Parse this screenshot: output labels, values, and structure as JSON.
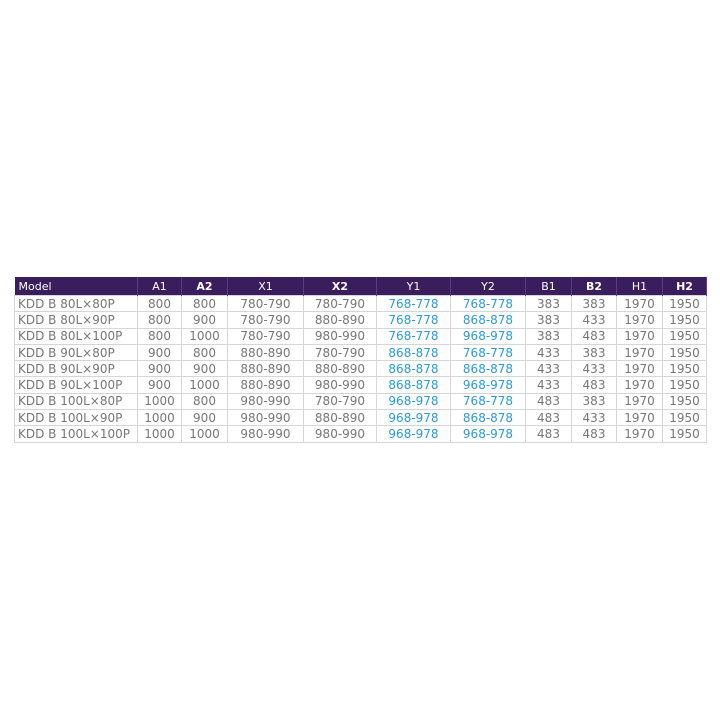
{
  "table": {
    "header": [
      "Model",
      "A1",
      "A2",
      "X1",
      "X2",
      "Y1",
      "Y2",
      "B1",
      "B2",
      "H1",
      "H2"
    ],
    "rows": [
      [
        "KDD B 80L×80P",
        "800",
        "800",
        "780-790",
        "780-790",
        "768-778",
        "768-778",
        "383",
        "383",
        "1970",
        "1950"
      ],
      [
        "KDD B 80L×90P",
        "800",
        "900",
        "780-790",
        "880-890",
        "768-778",
        "868-878",
        "383",
        "433",
        "1970",
        "1950"
      ],
      [
        "KDD B 80L×100P",
        "800",
        "1000",
        "780-790",
        "980-990",
        "768-778",
        "968-978",
        "383",
        "483",
        "1970",
        "1950"
      ],
      [
        "KDD B 90L×80P",
        "900",
        "800",
        "880-890",
        "780-790",
        "868-878",
        "768-778",
        "433",
        "383",
        "1970",
        "1950"
      ],
      [
        "KDD B 90L×90P",
        "900",
        "900",
        "880-890",
        "880-890",
        "868-878",
        "868-878",
        "433",
        "433",
        "1970",
        "1950"
      ],
      [
        "KDD B 90L×100P",
        "900",
        "1000",
        "880-890",
        "980-990",
        "868-878",
        "968-978",
        "433",
        "483",
        "1970",
        "1950"
      ],
      [
        "KDD B 100L×80P",
        "1000",
        "800",
        "980-990",
        "780-790",
        "968-978",
        "768-778",
        "483",
        "383",
        "1970",
        "1950"
      ],
      [
        "KDD B 100L×90P",
        "1000",
        "900",
        "980-990",
        "880-890",
        "968-978",
        "868-878",
        "483",
        "433",
        "1970",
        "1950"
      ],
      [
        "KDD B 100L×100P",
        "1000",
        "1000",
        "980-990",
        "980-990",
        "968-978",
        "968-978",
        "483",
        "483",
        "1970",
        "1950"
      ]
    ]
  }
}
